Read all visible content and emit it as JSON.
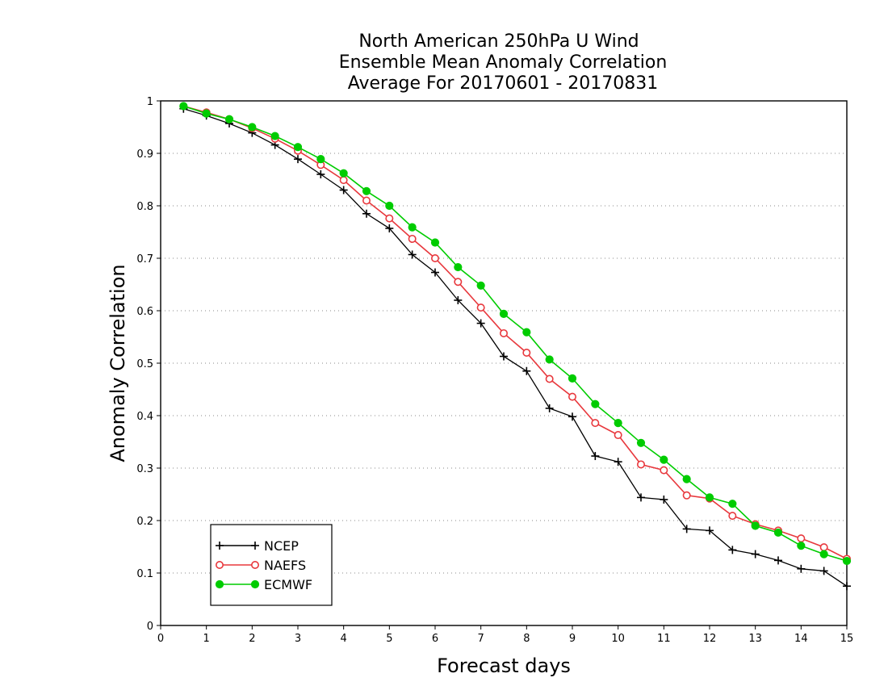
{
  "chart_data": {
    "type": "line",
    "title_lines": [
      "North American 250hPa U Wind",
      "Ensemble Mean Anomaly Correlation",
      "Average For 20170601 - 20170831"
    ],
    "xlabel": "Forecast days",
    "ylabel": "Anomaly Correlation",
    "xlim": [
      0,
      15
    ],
    "ylim": [
      0,
      1
    ],
    "x_ticks": [
      "0",
      "1",
      "2",
      "3",
      "4",
      "5",
      "6",
      "7",
      "8",
      "9",
      "10",
      "11",
      "12",
      "13",
      "14",
      "15"
    ],
    "y_ticks": [
      "0",
      "0.1",
      "0.2",
      "0.3",
      "0.4",
      "0.5",
      "0.6",
      "0.7",
      "0.8",
      "0.9",
      "1"
    ],
    "grid": true,
    "legend_position": "bottom-left",
    "x": [
      0.5,
      1,
      1.5,
      2,
      2.5,
      3,
      3.5,
      4,
      4.5,
      5,
      5.5,
      6,
      6.5,
      7,
      7.5,
      8,
      8.5,
      9,
      9.5,
      10,
      10.5,
      11,
      11.5,
      12,
      12.5,
      13,
      13.5,
      14,
      14.5,
      15
    ],
    "series": [
      {
        "name": "NCEP",
        "color": "#000000",
        "marker": "plus",
        "values": [
          0.985,
          0.972,
          0.957,
          0.939,
          0.916,
          0.889,
          0.86,
          0.83,
          0.785,
          0.757,
          0.707,
          0.673,
          0.62,
          0.576,
          0.513,
          0.485,
          0.414,
          0.398,
          0.323,
          0.312,
          0.244,
          0.24,
          0.184,
          0.181,
          0.144,
          0.136,
          0.124,
          0.108,
          0.104,
          0.075
        ]
      },
      {
        "name": "NAEFS",
        "color": "#e8383d",
        "marker": "open-circle",
        "values": [
          0.99,
          0.978,
          0.965,
          0.948,
          0.928,
          0.905,
          0.878,
          0.849,
          0.81,
          0.776,
          0.737,
          0.7,
          0.655,
          0.606,
          0.557,
          0.52,
          0.47,
          0.436,
          0.386,
          0.363,
          0.307,
          0.296,
          0.248,
          0.242,
          0.209,
          0.193,
          0.181,
          0.166,
          0.149,
          0.127
        ]
      },
      {
        "name": "ECMWF",
        "color": "#00cc00",
        "marker": "filled-circle",
        "values": [
          0.99,
          0.976,
          0.965,
          0.95,
          0.933,
          0.912,
          0.889,
          0.862,
          0.828,
          0.8,
          0.759,
          0.73,
          0.683,
          0.648,
          0.594,
          0.559,
          0.507,
          0.471,
          0.422,
          0.386,
          0.348,
          0.316,
          0.279,
          0.244,
          0.232,
          0.19,
          0.177,
          0.152,
          0.136,
          0.123
        ]
      }
    ]
  }
}
